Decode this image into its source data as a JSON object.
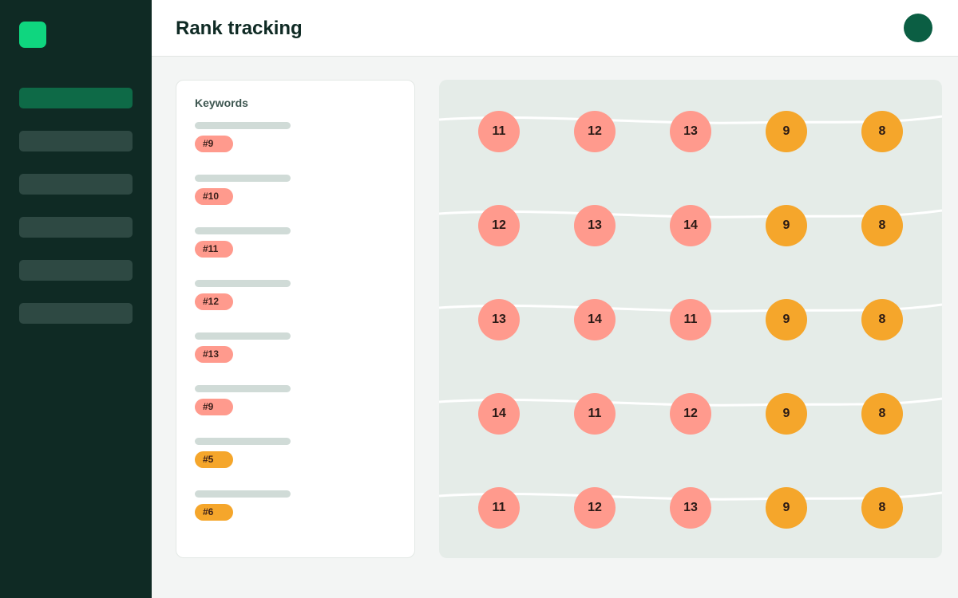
{
  "header": {
    "title": "Rank tracking"
  },
  "sidebar": {
    "nav_count": 6,
    "active_index": 0
  },
  "keywords": {
    "heading": "Keywords",
    "items": [
      {
        "rank": "#9",
        "status": "low"
      },
      {
        "rank": "#10",
        "status": "low"
      },
      {
        "rank": "#11",
        "status": "low"
      },
      {
        "rank": "#12",
        "status": "low"
      },
      {
        "rank": "#13",
        "status": "low"
      },
      {
        "rank": "#9",
        "status": "low"
      },
      {
        "rank": "#5",
        "status": "good"
      },
      {
        "rank": "#6",
        "status": "good"
      }
    ]
  },
  "grid": {
    "rows": [
      [
        "11",
        "12",
        "13",
        "9",
        "8"
      ],
      [
        "12",
        "13",
        "14",
        "9",
        "8"
      ],
      [
        "13",
        "14",
        "11",
        "9",
        "8"
      ],
      [
        "14",
        "11",
        "12",
        "9",
        "8"
      ],
      [
        "11",
        "12",
        "13",
        "9",
        "8"
      ]
    ]
  },
  "colors": {
    "sidebar_bg": "#0f2a24",
    "accent": "#0fd67f",
    "rank_low": "#ff9a8d",
    "rank_good": "#f5a62b",
    "avatar": "#0b5e43"
  }
}
